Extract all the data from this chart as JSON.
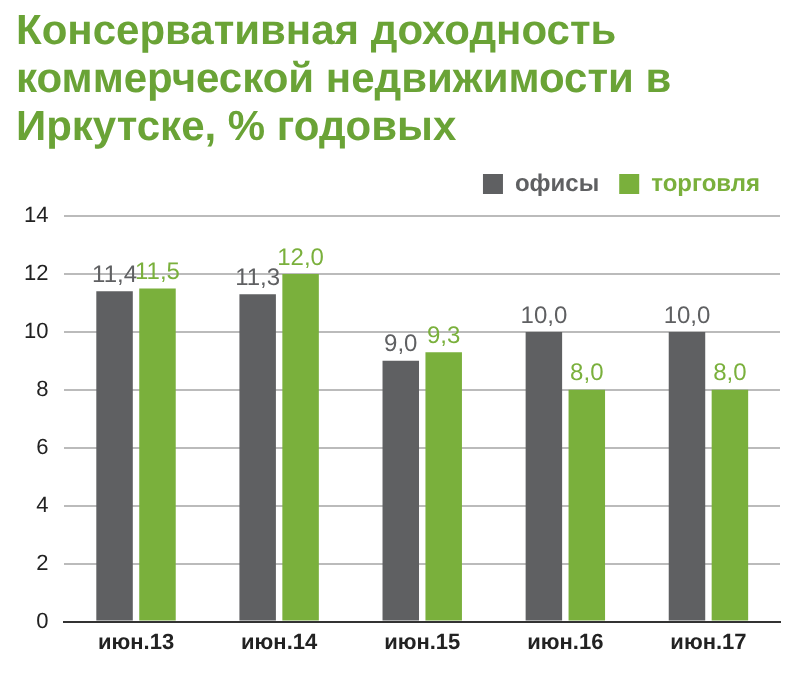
{
  "chart_data": {
    "type": "bar",
    "title": "Консервативная доходность коммерческой недвижимости в Иркутске, % годовых",
    "categories": [
      "июн.13",
      "июн.14",
      "июн.15",
      "июн.16",
      "июн.17"
    ],
    "series": [
      {
        "name": "офисы",
        "color": "#5f6062",
        "values": [
          11.4,
          11.3,
          9.0,
          10.0,
          10.0
        ],
        "value_labels": [
          "11,4",
          "11,3",
          "9,0",
          "10,0",
          "10,0"
        ]
      },
      {
        "name": "торговля",
        "color": "#7ab03c",
        "values": [
          11.5,
          12.0,
          9.3,
          8.0,
          8.0
        ],
        "value_labels": [
          "11,5",
          "12,0",
          "9,3",
          "8,0",
          "8,0"
        ]
      }
    ],
    "ylim": [
      0,
      14
    ],
    "yticks": [
      0,
      2,
      4,
      6,
      8,
      10,
      12,
      14
    ],
    "grid": "y",
    "legend": "top right"
  }
}
